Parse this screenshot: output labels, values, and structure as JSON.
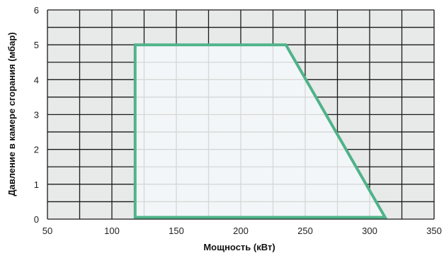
{
  "chart_data": {
    "type": "area",
    "title": "",
    "xlabel": "Мощность (кВт)",
    "ylabel": "Давление в камере сгорания (мбар)",
    "xlim": [
      50,
      350
    ],
    "ylim": [
      0,
      6
    ],
    "x_ticks": [
      50,
      100,
      150,
      200,
      250,
      300,
      350
    ],
    "y_ticks": [
      0,
      1,
      2,
      3,
      4,
      5,
      6
    ],
    "x_tick_labels": [
      "50",
      "100",
      "150",
      "200",
      "250",
      "300",
      "350"
    ],
    "y_tick_labels": [
      "0",
      "1",
      "2",
      "3",
      "4",
      "5",
      "6"
    ],
    "x_minor_step": 25,
    "y_minor_step": 0.5,
    "grid": true,
    "series": [
      {
        "x": [
          118,
          118,
          235,
          312
        ],
        "y": [
          0.05,
          5,
          5,
          0.05
        ]
      }
    ],
    "colors": {
      "background": "#e8e9e9",
      "envelope_fill": "#f3f6f8",
      "envelope_stroke": "#4fb38a",
      "grid_major": "#1a1a1a",
      "grid_inner": "#d6d6d6"
    }
  }
}
